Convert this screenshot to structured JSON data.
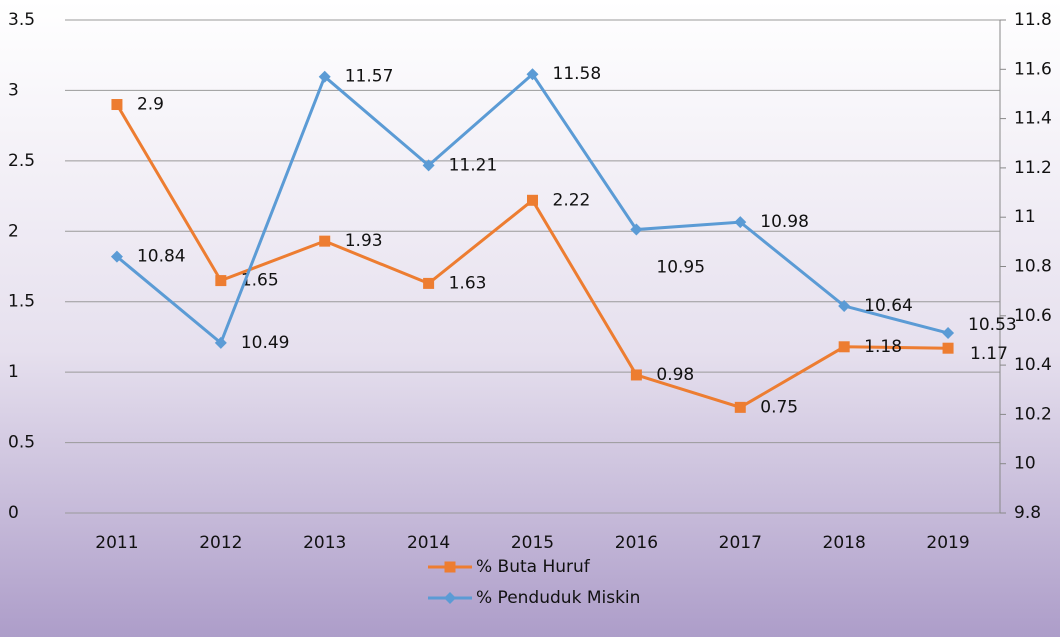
{
  "chart_data": {
    "type": "line",
    "categories": [
      "2011",
      "2012",
      "2013",
      "2014",
      "2015",
      "2016",
      "2017",
      "2018",
      "2019"
    ],
    "series": [
      {
        "name": "% Buta Huruf",
        "color": "#ed7d31",
        "marker": "square",
        "values": [
          2.9,
          1.65,
          1.93,
          1.63,
          2.22,
          0.98,
          0.75,
          1.18,
          1.17
        ]
      },
      {
        "name": "% Penduduk Miskin",
        "color": "#5b9bd5",
        "marker": "diamond",
        "axis": "y2",
        "values": [
          10.84,
          10.49,
          11.57,
          11.21,
          11.58,
          10.95,
          10.98,
          10.64,
          10.53
        ]
      }
    ],
    "ylim": [
      0,
      3.5
    ],
    "yticks": [
      0,
      0.5,
      1,
      1.5,
      2,
      2.5,
      3,
      3.5
    ],
    "y2lim": [
      9.8,
      11.8
    ],
    "y2ticks": [
      9.8,
      10,
      10.2,
      10.4,
      10.6,
      10.8,
      11,
      11.2,
      11.4,
      11.6,
      11.8
    ],
    "grid": true,
    "legend": "bottom"
  }
}
